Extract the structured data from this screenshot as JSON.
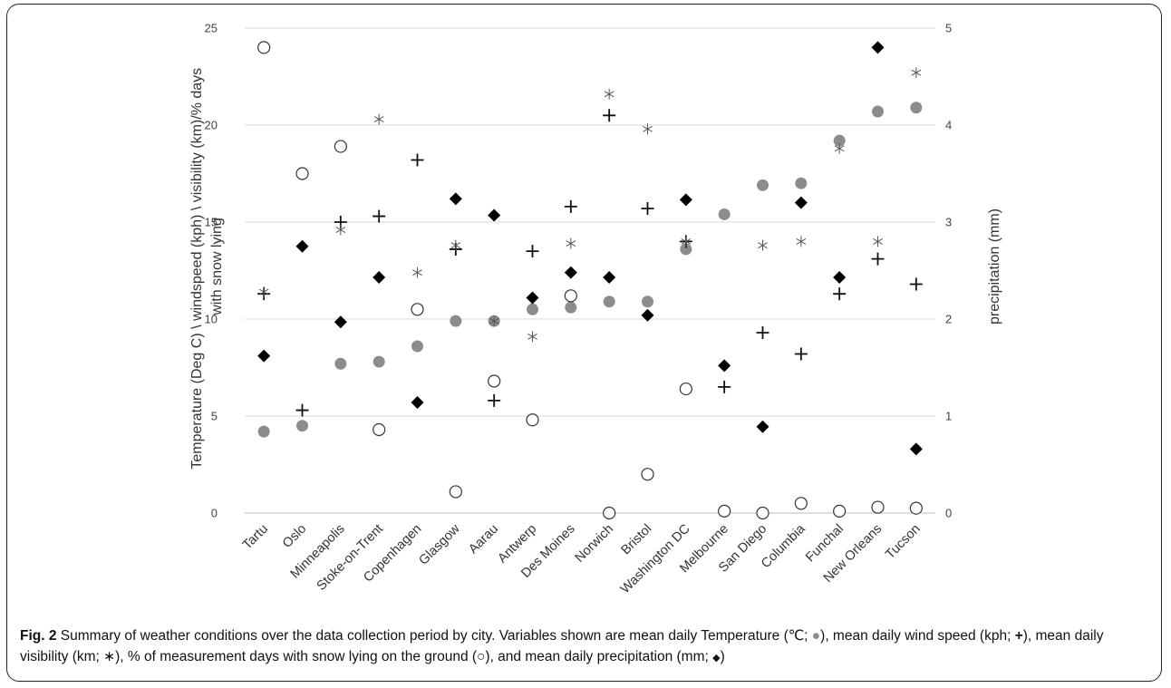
{
  "chart_data": {
    "type": "scatter",
    "categories": [
      "Tartu",
      "Oslo",
      "Minneapolis",
      "Stoke-on-Trent",
      "Copenhagen",
      "Glasgow",
      "Aarau",
      "Antwerp",
      "Des Moines",
      "Norwich",
      "Bristol",
      "Washington DC",
      "Melbourne",
      "San Diego",
      "Columbia",
      "Funchal",
      "New Orleans",
      "Tucson"
    ],
    "y_axis_left": {
      "label": "Temperature (Deg C) \\ windspeed (kph) \\ visibility (km)/% days with snow lying",
      "label_lines": [
        "Temperature (Deg C) \\ windspeed (kph) \\ visibility (km)/% days",
        "with snow lying"
      ],
      "range": [
        0,
        25
      ],
      "ticks": [
        0,
        5,
        10,
        15,
        20,
        25
      ]
    },
    "y_axis_right": {
      "label": "precipitation (mm)",
      "range": [
        0,
        5
      ],
      "ticks": [
        0,
        1,
        2,
        3,
        4,
        5
      ]
    },
    "grid": true,
    "series": [
      {
        "name": "Temperature",
        "marker": "filled-circle",
        "color": "#8c8c8c",
        "axis": "left",
        "values": [
          4.2,
          4.5,
          7.7,
          7.8,
          8.6,
          9.9,
          9.9,
          10.5,
          10.6,
          10.9,
          10.9,
          13.6,
          15.4,
          16.9,
          17.0,
          19.2,
          20.7,
          20.9
        ]
      },
      {
        "name": "Wind speed",
        "marker": "plus",
        "color": "#111111",
        "axis": "left",
        "values": [
          11.3,
          5.3,
          15.0,
          15.3,
          18.2,
          13.6,
          5.8,
          13.5,
          15.8,
          20.5,
          15.7,
          14.0,
          6.5,
          9.3,
          8.2,
          11.3,
          13.1,
          11.8
        ]
      },
      {
        "name": "Visibility",
        "marker": "asterisk",
        "color": "#555555",
        "axis": "left",
        "values": [
          11.4,
          null,
          14.6,
          20.3,
          12.4,
          13.8,
          9.9,
          9.1,
          13.9,
          21.6,
          19.8,
          14.0,
          null,
          13.8,
          14.0,
          18.8,
          14.0,
          22.7
        ]
      },
      {
        "name": "Snow lying",
        "marker": "open-circle",
        "color": "#333333",
        "axis": "left",
        "values": [
          24.0,
          17.5,
          18.9,
          4.3,
          10.5,
          1.1,
          6.8,
          4.8,
          11.2,
          0.0,
          2.0,
          6.4,
          0.1,
          0.0,
          0.5,
          0.1,
          0.3,
          0.25
        ]
      },
      {
        "name": "Precipitation",
        "marker": "diamond",
        "color": "#000000",
        "axis": "right",
        "values": [
          1.62,
          2.75,
          1.97,
          2.43,
          1.14,
          3.24,
          3.07,
          2.22,
          2.48,
          2.43,
          2.04,
          3.23,
          1.52,
          0.89,
          3.2,
          2.43,
          4.8,
          0.66
        ]
      }
    ]
  },
  "caption": {
    "fig_label": "Fig. 2",
    "text_1": " Summary of weather conditions over the data collection period by city. Variables shown are mean daily Temperature (℃; ",
    "sym_temp": "●",
    "text_2": "), mean daily wind speed (kph; ",
    "sym_wind": "+",
    "text_3": "), mean daily visibility (km; ",
    "sym_vis": "∗",
    "text_4": "), % of measurement days with snow lying on the ground (",
    "sym_snow": "○",
    "text_5": "), and mean daily precipitation (mm; ",
    "sym_precip": "◆",
    "text_6": ")"
  }
}
